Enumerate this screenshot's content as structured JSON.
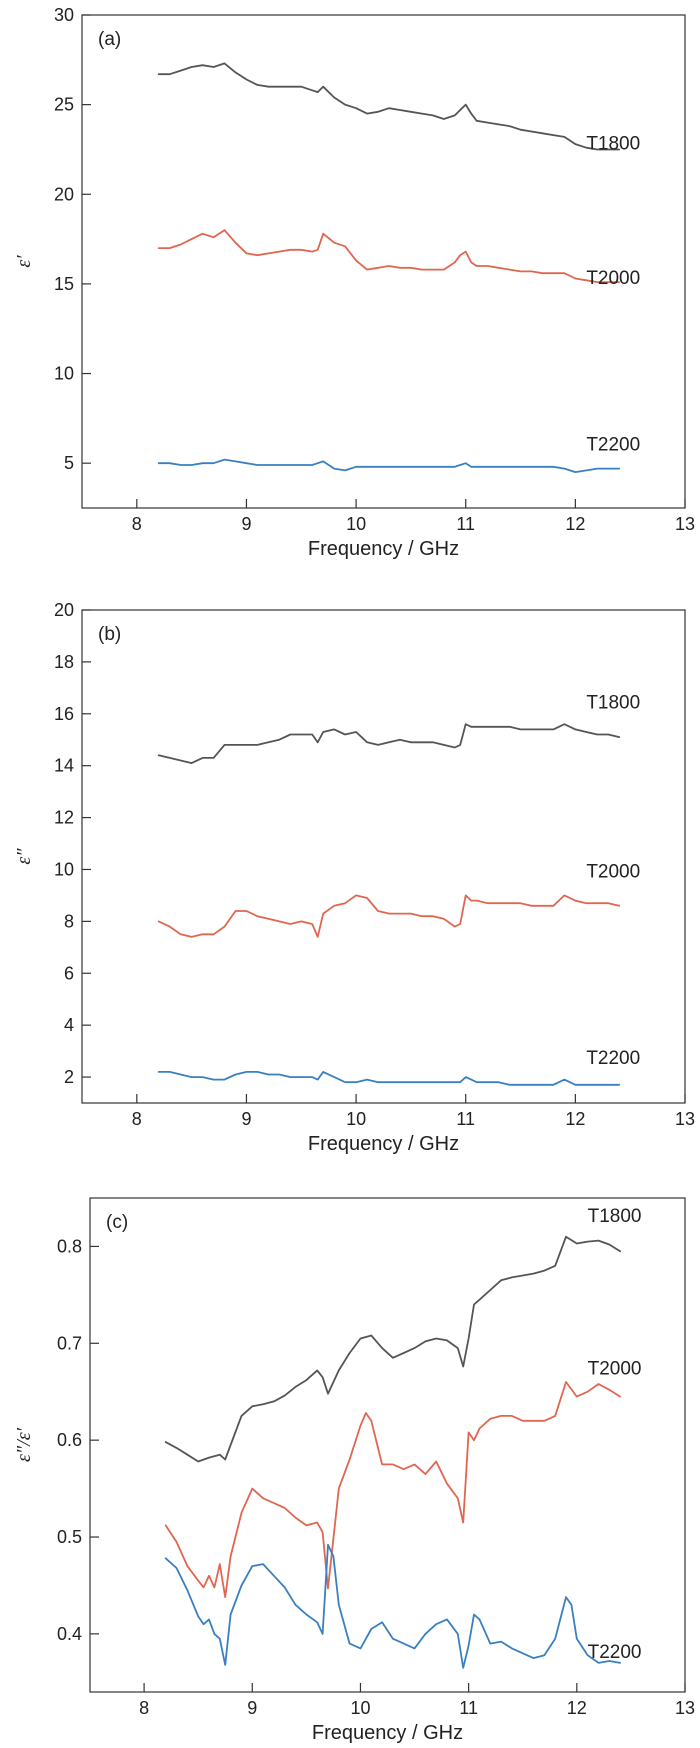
{
  "colors": {
    "T1800": "#555555",
    "T2000": "#e06650",
    "T2200": "#3a7fc0",
    "axis": "#333333"
  },
  "chart_data": [
    {
      "type": "line",
      "panel_label": "(a)",
      "xlabel": "Frequency / GHz",
      "ylabel": "ε′",
      "xlim": [
        7.5,
        13
      ],
      "ylim": [
        2.5,
        30
      ],
      "xticks": [
        8,
        9,
        10,
        11,
        12,
        13
      ],
      "yticks": [
        5,
        10,
        15,
        20,
        25,
        30
      ],
      "grid": false,
      "series": [
        {
          "name": "T1800",
          "color_key": "T1800",
          "label_at": [
            12.1,
            22.5
          ],
          "x": [
            8.2,
            8.3,
            8.4,
            8.5,
            8.6,
            8.7,
            8.8,
            8.9,
            9.0,
            9.1,
            9.2,
            9.3,
            9.4,
            9.5,
            9.6,
            9.65,
            9.7,
            9.8,
            9.9,
            10.0,
            10.1,
            10.2,
            10.3,
            10.4,
            10.5,
            10.6,
            10.7,
            10.8,
            10.9,
            10.95,
            11.0,
            11.05,
            11.1,
            11.2,
            11.3,
            11.4,
            11.5,
            11.6,
            11.7,
            11.8,
            11.9,
            12.0,
            12.1,
            12.2,
            12.3,
            12.4
          ],
          "y": [
            26.7,
            26.7,
            26.9,
            27.1,
            27.2,
            27.1,
            27.3,
            26.8,
            26.4,
            26.1,
            26.0,
            26.0,
            26.0,
            26.0,
            25.8,
            25.7,
            26.0,
            25.4,
            25.0,
            24.8,
            24.5,
            24.6,
            24.8,
            24.7,
            24.6,
            24.5,
            24.4,
            24.2,
            24.4,
            24.7,
            25.0,
            24.5,
            24.1,
            24.0,
            23.9,
            23.8,
            23.6,
            23.5,
            23.4,
            23.3,
            23.2,
            22.8,
            22.6,
            22.5,
            22.5,
            22.5
          ]
        },
        {
          "name": "T2000",
          "color_key": "T2000",
          "label_at": [
            12.1,
            15.0
          ],
          "x": [
            8.2,
            8.3,
            8.4,
            8.5,
            8.6,
            8.7,
            8.8,
            8.9,
            9.0,
            9.1,
            9.2,
            9.3,
            9.4,
            9.5,
            9.6,
            9.65,
            9.7,
            9.8,
            9.9,
            10.0,
            10.1,
            10.2,
            10.3,
            10.4,
            10.5,
            10.6,
            10.7,
            10.8,
            10.9,
            10.95,
            11.0,
            11.05,
            11.1,
            11.2,
            11.3,
            11.4,
            11.5,
            11.6,
            11.7,
            11.8,
            11.9,
            12.0,
            12.1,
            12.2,
            12.3,
            12.4
          ],
          "y": [
            17.0,
            17.0,
            17.2,
            17.5,
            17.8,
            17.6,
            18.0,
            17.3,
            16.7,
            16.6,
            16.7,
            16.8,
            16.9,
            16.9,
            16.8,
            16.9,
            17.8,
            17.3,
            17.1,
            16.3,
            15.8,
            15.9,
            16.0,
            15.9,
            15.9,
            15.8,
            15.8,
            15.8,
            16.2,
            16.6,
            16.8,
            16.2,
            16.0,
            16.0,
            15.9,
            15.8,
            15.7,
            15.7,
            15.6,
            15.6,
            15.6,
            15.3,
            15.2,
            15.1,
            15.1,
            15.1
          ]
        },
        {
          "name": "T2200",
          "color_key": "T2200",
          "label_at": [
            12.1,
            5.7
          ],
          "x": [
            8.2,
            8.3,
            8.4,
            8.5,
            8.6,
            8.7,
            8.8,
            8.9,
            9.0,
            9.1,
            9.2,
            9.3,
            9.4,
            9.5,
            9.6,
            9.65,
            9.7,
            9.8,
            9.9,
            10.0,
            10.1,
            10.2,
            10.3,
            10.4,
            10.5,
            10.6,
            10.7,
            10.8,
            10.9,
            10.95,
            11.0,
            11.05,
            11.1,
            11.2,
            11.3,
            11.4,
            11.5,
            11.6,
            11.7,
            11.8,
            11.9,
            12.0,
            12.1,
            12.2,
            12.3,
            12.4
          ],
          "y": [
            5.0,
            5.0,
            4.9,
            4.9,
            5.0,
            5.0,
            5.2,
            5.1,
            5.0,
            4.9,
            4.9,
            4.9,
            4.9,
            4.9,
            4.9,
            5.0,
            5.1,
            4.7,
            4.6,
            4.8,
            4.8,
            4.8,
            4.8,
            4.8,
            4.8,
            4.8,
            4.8,
            4.8,
            4.8,
            4.9,
            5.0,
            4.8,
            4.8,
            4.8,
            4.8,
            4.8,
            4.8,
            4.8,
            4.8,
            4.8,
            4.7,
            4.5,
            4.6,
            4.7,
            4.7,
            4.7
          ]
        }
      ]
    },
    {
      "type": "line",
      "panel_label": "(b)",
      "xlabel": "Frequency / GHz",
      "ylabel": "ε″",
      "xlim": [
        7.5,
        13
      ],
      "ylim": [
        1,
        20
      ],
      "xticks": [
        8,
        9,
        10,
        11,
        12,
        13
      ],
      "yticks": [
        2,
        4,
        6,
        8,
        10,
        12,
        14,
        16,
        18,
        20
      ],
      "grid": false,
      "series": [
        {
          "name": "T1800",
          "color_key": "T1800",
          "label_at": [
            12.1,
            16.2
          ],
          "x": [
            8.2,
            8.3,
            8.4,
            8.5,
            8.6,
            8.7,
            8.8,
            8.9,
            9.0,
            9.1,
            9.2,
            9.3,
            9.4,
            9.5,
            9.6,
            9.65,
            9.7,
            9.8,
            9.9,
            10.0,
            10.1,
            10.2,
            10.3,
            10.4,
            10.5,
            10.6,
            10.7,
            10.8,
            10.9,
            10.95,
            11.0,
            11.05,
            11.1,
            11.2,
            11.3,
            11.4,
            11.5,
            11.6,
            11.7,
            11.8,
            11.9,
            12.0,
            12.1,
            12.2,
            12.3,
            12.4
          ],
          "y": [
            14.4,
            14.3,
            14.2,
            14.1,
            14.3,
            14.3,
            14.8,
            14.8,
            14.8,
            14.8,
            14.9,
            15.0,
            15.2,
            15.2,
            15.2,
            14.9,
            15.3,
            15.4,
            15.2,
            15.3,
            14.9,
            14.8,
            14.9,
            15.0,
            14.9,
            14.9,
            14.9,
            14.8,
            14.7,
            14.8,
            15.6,
            15.5,
            15.5,
            15.5,
            15.5,
            15.5,
            15.4,
            15.4,
            15.4,
            15.4,
            15.6,
            15.4,
            15.3,
            15.2,
            15.2,
            15.1
          ]
        },
        {
          "name": "T2000",
          "color_key": "T2000",
          "label_at": [
            12.1,
            9.7
          ],
          "x": [
            8.2,
            8.3,
            8.4,
            8.5,
            8.6,
            8.7,
            8.8,
            8.9,
            9.0,
            9.1,
            9.2,
            9.3,
            9.4,
            9.5,
            9.6,
            9.65,
            9.7,
            9.8,
            9.9,
            10.0,
            10.1,
            10.2,
            10.3,
            10.4,
            10.5,
            10.6,
            10.7,
            10.8,
            10.9,
            10.95,
            11.0,
            11.05,
            11.1,
            11.2,
            11.3,
            11.4,
            11.5,
            11.6,
            11.7,
            11.8,
            11.9,
            12.0,
            12.1,
            12.2,
            12.3,
            12.4
          ],
          "y": [
            8.0,
            7.8,
            7.5,
            7.4,
            7.5,
            7.5,
            7.8,
            8.4,
            8.4,
            8.2,
            8.1,
            8.0,
            7.9,
            8.0,
            7.9,
            7.4,
            8.3,
            8.6,
            8.7,
            9.0,
            8.9,
            8.4,
            8.3,
            8.3,
            8.3,
            8.2,
            8.2,
            8.1,
            7.8,
            7.9,
            9.0,
            8.8,
            8.8,
            8.7,
            8.7,
            8.7,
            8.7,
            8.6,
            8.6,
            8.6,
            9.0,
            8.8,
            8.7,
            8.7,
            8.7,
            8.6
          ]
        },
        {
          "name": "T2200",
          "color_key": "T2200",
          "label_at": [
            12.1,
            2.5
          ],
          "x": [
            8.2,
            8.3,
            8.4,
            8.5,
            8.6,
            8.7,
            8.8,
            8.9,
            9.0,
            9.1,
            9.2,
            9.3,
            9.4,
            9.5,
            9.6,
            9.65,
            9.7,
            9.8,
            9.9,
            10.0,
            10.1,
            10.2,
            10.3,
            10.4,
            10.5,
            10.6,
            10.7,
            10.8,
            10.9,
            10.95,
            11.0,
            11.05,
            11.1,
            11.2,
            11.3,
            11.4,
            11.5,
            11.6,
            11.7,
            11.8,
            11.9,
            12.0,
            12.1,
            12.2,
            12.3,
            12.4
          ],
          "y": [
            2.2,
            2.2,
            2.1,
            2.0,
            2.0,
            1.9,
            1.9,
            2.1,
            2.2,
            2.2,
            2.1,
            2.1,
            2.0,
            2.0,
            2.0,
            1.9,
            2.2,
            2.0,
            1.8,
            1.8,
            1.9,
            1.8,
            1.8,
            1.8,
            1.8,
            1.8,
            1.8,
            1.8,
            1.8,
            1.8,
            2.0,
            1.9,
            1.8,
            1.8,
            1.8,
            1.7,
            1.7,
            1.7,
            1.7,
            1.7,
            1.9,
            1.7,
            1.7,
            1.7,
            1.7,
            1.7
          ]
        }
      ]
    },
    {
      "type": "line",
      "panel_label": "(c)",
      "xlabel": "Frequency / GHz",
      "ylabel": "ε″/ε′",
      "xlim": [
        7.5,
        13
      ],
      "ylim": [
        0.34,
        0.85
      ],
      "xticks": [
        8,
        9,
        10,
        11,
        12,
        13
      ],
      "yticks": [
        0.4,
        0.5,
        0.6,
        0.7,
        0.8
      ],
      "grid": false,
      "series": [
        {
          "name": "T1800",
          "color_key": "T1800",
          "label_at": [
            12.1,
            0.825
          ],
          "x": [
            8.2,
            8.3,
            8.4,
            8.5,
            8.6,
            8.7,
            8.75,
            8.8,
            8.9,
            9.0,
            9.1,
            9.2,
            9.3,
            9.4,
            9.5,
            9.6,
            9.65,
            9.7,
            9.8,
            9.9,
            10.0,
            10.1,
            10.2,
            10.3,
            10.4,
            10.5,
            10.6,
            10.7,
            10.8,
            10.9,
            10.95,
            11.0,
            11.05,
            11.1,
            11.2,
            11.3,
            11.4,
            11.5,
            11.6,
            11.7,
            11.8,
            11.9,
            12.0,
            12.1,
            12.2,
            12.3,
            12.4
          ],
          "y": [
            0.598,
            0.592,
            0.585,
            0.578,
            0.582,
            0.585,
            0.58,
            0.595,
            0.625,
            0.635,
            0.637,
            0.64,
            0.646,
            0.655,
            0.662,
            0.672,
            0.665,
            0.648,
            0.672,
            0.69,
            0.705,
            0.708,
            0.695,
            0.685,
            0.69,
            0.695,
            0.702,
            0.705,
            0.703,
            0.695,
            0.676,
            0.705,
            0.74,
            0.745,
            0.755,
            0.765,
            0.768,
            0.77,
            0.772,
            0.775,
            0.78,
            0.81,
            0.803,
            0.805,
            0.806,
            0.802,
            0.795
          ]
        },
        {
          "name": "T2000",
          "color_key": "T2000",
          "label_at": [
            12.1,
            0.668
          ],
          "x": [
            8.2,
            8.3,
            8.4,
            8.5,
            8.55,
            8.6,
            8.65,
            8.7,
            8.75,
            8.8,
            8.9,
            9.0,
            9.1,
            9.2,
            9.3,
            9.4,
            9.5,
            9.6,
            9.65,
            9.7,
            9.8,
            9.9,
            10.0,
            10.05,
            10.1,
            10.2,
            10.3,
            10.4,
            10.5,
            10.6,
            10.7,
            10.8,
            10.9,
            10.95,
            11.0,
            11.05,
            11.1,
            11.2,
            11.3,
            11.4,
            11.5,
            11.6,
            11.7,
            11.8,
            11.9,
            12.0,
            12.1,
            12.2,
            12.3,
            12.4
          ],
          "y": [
            0.512,
            0.495,
            0.47,
            0.455,
            0.448,
            0.46,
            0.448,
            0.472,
            0.438,
            0.48,
            0.525,
            0.55,
            0.54,
            0.535,
            0.53,
            0.52,
            0.512,
            0.515,
            0.505,
            0.447,
            0.55,
            0.58,
            0.615,
            0.628,
            0.62,
            0.575,
            0.575,
            0.57,
            0.575,
            0.565,
            0.578,
            0.555,
            0.54,
            0.515,
            0.608,
            0.6,
            0.612,
            0.622,
            0.625,
            0.625,
            0.62,
            0.62,
            0.62,
            0.625,
            0.66,
            0.645,
            0.65,
            0.658,
            0.652,
            0.645
          ]
        },
        {
          "name": "T2200",
          "color_key": "T2200",
          "label_at": [
            12.1,
            0.375
          ],
          "x": [
            8.2,
            8.3,
            8.4,
            8.5,
            8.55,
            8.6,
            8.65,
            8.7,
            8.75,
            8.8,
            8.9,
            9.0,
            9.1,
            9.2,
            9.3,
            9.4,
            9.5,
            9.6,
            9.65,
            9.7,
            9.75,
            9.8,
            9.9,
            10.0,
            10.1,
            10.2,
            10.3,
            10.4,
            10.5,
            10.6,
            10.7,
            10.8,
            10.9,
            10.95,
            11.0,
            11.05,
            11.1,
            11.2,
            11.3,
            11.4,
            11.5,
            11.6,
            11.7,
            11.8,
            11.9,
            11.95,
            12.0,
            12.1,
            12.2,
            12.3,
            12.4
          ],
          "y": [
            0.478,
            0.468,
            0.445,
            0.418,
            0.41,
            0.415,
            0.4,
            0.395,
            0.368,
            0.42,
            0.45,
            0.47,
            0.472,
            0.46,
            0.448,
            0.43,
            0.42,
            0.412,
            0.4,
            0.492,
            0.48,
            0.43,
            0.39,
            0.385,
            0.405,
            0.412,
            0.395,
            0.39,
            0.385,
            0.4,
            0.41,
            0.415,
            0.4,
            0.365,
            0.388,
            0.42,
            0.415,
            0.39,
            0.392,
            0.385,
            0.38,
            0.375,
            0.378,
            0.395,
            0.438,
            0.43,
            0.395,
            0.378,
            0.37,
            0.372,
            0.37
          ]
        }
      ]
    }
  ]
}
